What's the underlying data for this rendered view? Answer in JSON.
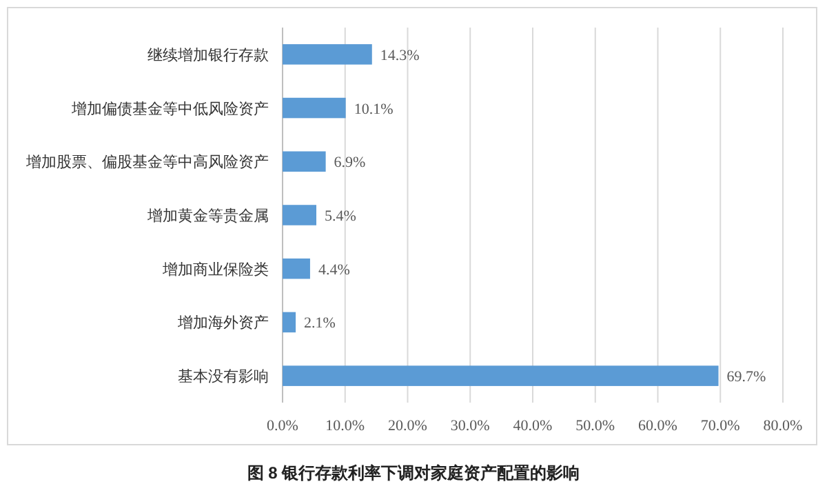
{
  "chart_data": {
    "type": "bar",
    "orientation": "horizontal",
    "title": "图 8 银行存款利率下调对家庭资产配置的影响",
    "categories": [
      "继续增加银行存款",
      "增加偏债基金等中低风险资产",
      "增加股票、偏股基金等中高风险资产",
      "增加黄金等贵金属",
      "增加商业保险类",
      "增加海外资产",
      "基本没有影响"
    ],
    "values": [
      14.3,
      10.1,
      6.9,
      5.4,
      4.4,
      2.1,
      69.7
    ],
    "value_labels": [
      "14.3%",
      "10.1%",
      "6.9%",
      "5.4%",
      "4.4%",
      "2.1%",
      "69.7%"
    ],
    "color": "#5b9bd5",
    "xlim": [
      0,
      80
    ],
    "xticks": [
      {
        "value": 0,
        "label": "0.0%"
      },
      {
        "value": 10,
        "label": "10.0%"
      },
      {
        "value": 20,
        "label": "20.0%"
      },
      {
        "value": 30,
        "label": "30.0%"
      },
      {
        "value": 40,
        "label": "40.0%"
      },
      {
        "value": 50,
        "label": "50.0%"
      },
      {
        "value": 60,
        "label": "60.0%"
      },
      {
        "value": 70,
        "label": "70.0%"
      },
      {
        "value": 80,
        "label": "80.0%"
      }
    ],
    "grid": "x"
  }
}
